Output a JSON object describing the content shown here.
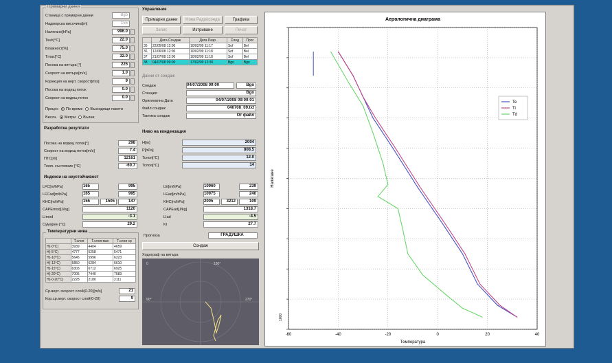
{
  "top_panel": {
    "title": "Примарни данни",
    "fields": [
      {
        "label": "Станица с примарни данни",
        "value": "Bgo"
      },
      {
        "label": "Надморска височина[m]",
        "value": "155"
      },
      {
        "label": "Налягане[hPa]",
        "value": "996.0"
      },
      {
        "label": "Tsuh[°C]",
        "value": "22.0"
      },
      {
        "label": "Влажност[%]",
        "value": "75.0"
      },
      {
        "label": "Tmax[°C]",
        "value": "32.0"
      },
      {
        "label": "Посока на вятъра [°]",
        "value": "225"
      },
      {
        "label": "Скорост на вятъра[m/s]",
        "value": "1.0"
      },
      {
        "label": "Корекция на верт. скорост[m/s]",
        "value": "9"
      },
      {
        "label": "Посока на водещ поток",
        "value": "0.0"
      },
      {
        "label": "Скорост на водещ поток",
        "value": "0.0"
      }
    ],
    "mode_label": "Процес",
    "mode_options": [
      "По време",
      "Възходящи пакети"
    ],
    "height_label": "Височ.",
    "height_options": [
      "Метри",
      "Вълни"
    ]
  },
  "control": {
    "title": "Управление",
    "buttons": [
      "Примарни данни",
      "Нова Радиосонда",
      "Графика",
      "Запис",
      "Изтриване",
      "Печат"
    ],
    "table_headers": [
      "",
      "Дата Сондаж",
      "Дата Разр.",
      "След",
      "Прог"
    ],
    "rows": [
      {
        "n": "35",
        "d1": "22/05/08 12:00",
        "d2": "10/02/09 11:17",
        "s": "Sof",
        "p": "Bel"
      },
      {
        "n": "36",
        "d1": "12/06/08 12:00",
        "d2": "10/02/09 11:18",
        "s": "Sof",
        "p": "Bel"
      },
      {
        "n": "37",
        "d1": "21/07/08 12:00",
        "d2": "10/02/09 11:18",
        "s": "Sof",
        "p": "Bel"
      },
      {
        "n": "38",
        "d1": "04/07/08 09:00",
        "d2": "17/02/09 12:30",
        "s": "Bgo",
        "p": "Bgo"
      }
    ]
  },
  "sounding": {
    "title": "Данни от сондаж",
    "fields": [
      {
        "label": "Сондаж",
        "value": "04/07/2008 09:00",
        "extra": "Bgo"
      },
      {
        "label": "Станция",
        "value": "Bgo"
      },
      {
        "label": "Оригинална Дата",
        "value": "04/07/2008 09:00:01"
      },
      {
        "label": "Файл сондаж",
        "value": "040708_09.txt"
      },
      {
        "label": "Тактика сондаж",
        "value": "От файл"
      }
    ]
  },
  "results": {
    "title": "Разработка резултати",
    "fields": [
      {
        "label": "Посока на водещ поток[°]",
        "value": "298"
      },
      {
        "label": "Скорост на водещ поток[m/s]",
        "value": "7.4"
      },
      {
        "label": "ПТС[m]",
        "value": "12161"
      },
      {
        "label": "Темп. състояние [°C]",
        "value": "-60.7"
      }
    ]
  },
  "condensation": {
    "title": "Ниво на кондензация",
    "fields": [
      {
        "label": "H[m]",
        "value": "2004"
      },
      {
        "label": "P[hPa]",
        "value": "808.5"
      },
      {
        "label": "Tcлоя[°C]",
        "value": "12.0"
      },
      {
        "label": "Tcлоя[°C]",
        "value": "14"
      }
    ]
  },
  "instability": {
    "title": "Индекси на неустойчивост",
    "left": [
      {
        "label": "LFC[m/hPa]",
        "a": "165",
        "b": "",
        "c": "995"
      },
      {
        "label": "LFCad[m/hPa]",
        "a": "165",
        "b": "",
        "c": "995"
      },
      {
        "label": "KHC[m/hPa]",
        "a": "155",
        "b": "1505",
        "c": "147"
      },
      {
        "label": "CAPEmod[J/kg]",
        "a": "",
        "b": "",
        "c": "1120"
      },
      {
        "label": "LImod",
        "a": "",
        "b": "",
        "c": "-3.1"
      },
      {
        "label": "Сумарен [°C]",
        "a": "",
        "b": "",
        "c": "29.2"
      }
    ],
    "right": [
      {
        "label": "LE[m/hPa]",
        "a": "10960",
        "b": "",
        "c": "239"
      },
      {
        "label": "LEad[m/hPa]",
        "a": "10975",
        "b": "",
        "c": "240"
      },
      {
        "label": "KHC[m/hPa]",
        "a": "2005",
        "b": "3212",
        "c": "109"
      },
      {
        "label": "CAPEad[J/kg]",
        "a": "",
        "b": "",
        "c": "1318.7"
      },
      {
        "label": "LIad",
        "a": "",
        "b": "",
        "c": "-4.5"
      },
      {
        "label": "KI",
        "a": "",
        "b": "",
        "c": "27.7"
      }
    ]
  },
  "temp_levels": {
    "title": "Температурни нива",
    "headers": [
      "",
      "T.слоя",
      "T.слоя мах",
      "T.слоя ср"
    ],
    "rows": [
      [
        "H(-0°C)",
        "3939",
        "4404",
        "4659"
      ],
      [
        "H(-5°C)",
        "4777",
        "5258",
        "5471"
      ],
      [
        "H(-10°C)",
        "5645",
        "5996",
        "6223"
      ],
      [
        "H(-12°C)",
        "5850",
        "6284",
        "6610"
      ],
      [
        "H(-15°C)",
        "6303",
        "6712",
        "6925"
      ],
      [
        "H(-20°C)",
        "7005",
        "7440",
        "7583"
      ],
      [
        "H(-0-20°C)",
        "2228",
        "2180",
        "2111"
      ]
    ],
    "extra": [
      {
        "label": "Ср.верт. скорост слой(0-20)[m/s]",
        "value": "21"
      },
      {
        "label": "Кор.ср.верт. скорост слой(0-20)",
        "value": "9"
      }
    ]
  },
  "forecast": {
    "label": "Прогноза",
    "value": "ГРАДУШКА",
    "button": "Сондаж"
  },
  "hodograph": {
    "title": "Ходограф на вятъра",
    "labels": [
      "0",
      "180°",
      "90°",
      "270°"
    ]
  },
  "chart_data": {
    "type": "line",
    "title": "Аерологична диаграма",
    "xlabel": "Температура",
    "ylabel": "Налягане",
    "xlim": [
      -60,
      40
    ],
    "x_ticks": [
      "-60",
      "-40",
      "-20",
      "0",
      "20",
      "40"
    ],
    "y_tick_labels": [
      "1000"
    ],
    "legend_position": "top-right",
    "grid": true,
    "colors": {
      "Te": "#4a52c4",
      "Ti": "#c04a8a",
      "Td": "#6ad66a"
    },
    "series": [
      {
        "name": "Te",
        "points": [
          [
            -40,
            0.92
          ],
          [
            -34,
            0.84
          ],
          [
            -30,
            0.77
          ],
          [
            -26,
            0.7
          ],
          [
            -18,
            0.6
          ],
          [
            -8,
            0.47
          ],
          [
            2,
            0.35
          ],
          [
            10,
            0.25
          ],
          [
            16,
            0.15
          ],
          [
            24,
            0.08
          ],
          [
            32,
            0.04
          ]
        ]
      },
      {
        "name": "Ti",
        "points": [
          [
            -40,
            0.92
          ],
          [
            -34,
            0.84
          ],
          [
            -30,
            0.77
          ],
          [
            -25,
            0.7
          ],
          [
            -17,
            0.6
          ],
          [
            -7,
            0.47
          ],
          [
            3,
            0.35
          ],
          [
            11,
            0.25
          ],
          [
            17,
            0.15
          ],
          [
            25,
            0.08
          ],
          [
            32,
            0.04
          ]
        ]
      },
      {
        "name": "Td",
        "points": [
          [
            -43,
            0.92
          ],
          [
            -36,
            0.82
          ],
          [
            -30,
            0.74
          ],
          [
            -26,
            0.65
          ],
          [
            -22,
            0.55
          ],
          [
            -20,
            0.48
          ],
          [
            -24,
            0.44
          ],
          [
            -16,
            0.4
          ],
          [
            -14,
            0.33
          ],
          [
            -12,
            0.25
          ],
          [
            -6,
            0.18
          ],
          [
            4,
            0.11
          ],
          [
            10,
            0.07
          ],
          [
            18,
            0.04
          ]
        ]
      }
    ],
    "y_marker_line": {
      "x": -50,
      "from": 0.92,
      "to": 0.84
    }
  }
}
